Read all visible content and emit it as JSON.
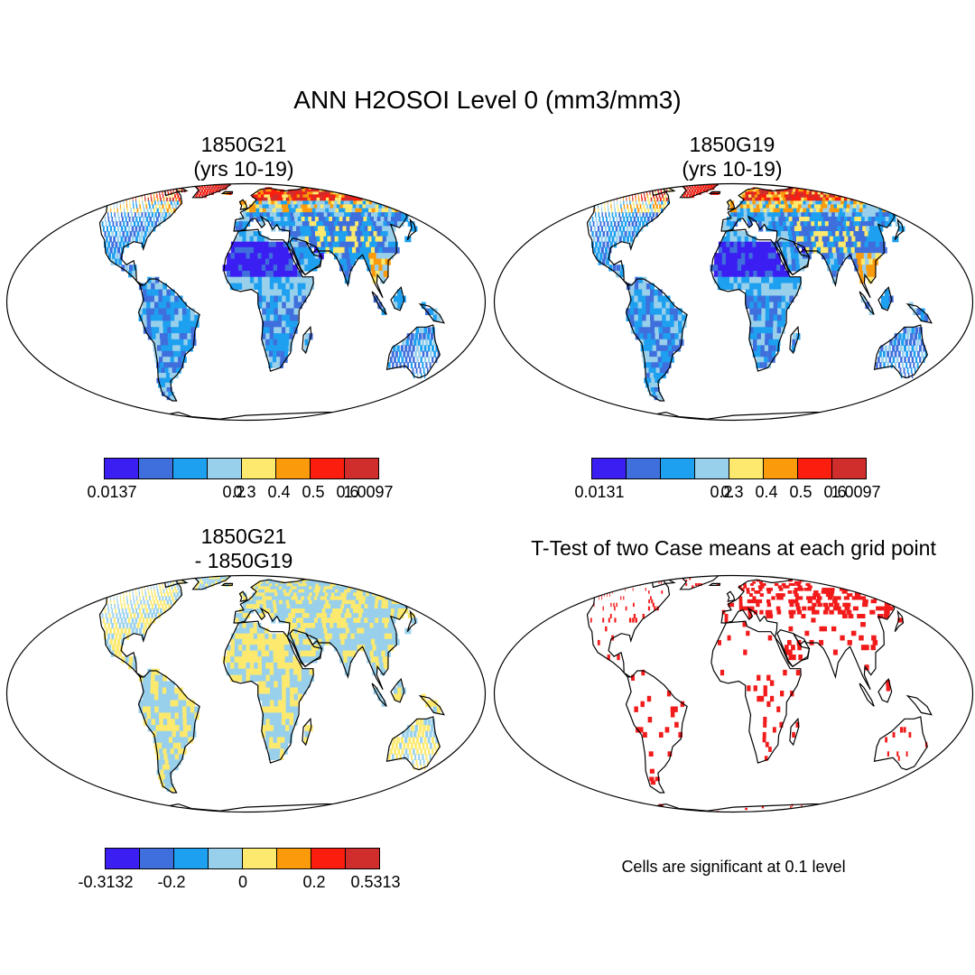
{
  "figure": {
    "title": "ANN H2OSOI Level 0 (mm3/mm3)",
    "note": "Cells are significant at 0.1 level"
  },
  "chart_data": [
    {
      "type": "heatmap",
      "title": "1850G21",
      "subtitle": "(yrs 10-19)",
      "projection": "Robinson",
      "colorbar": {
        "tick_labels": [
          "0.0137",
          "0.2",
          "0.3",
          "0.4",
          "0.5",
          "0.6",
          "1.0097"
        ],
        "min": 0.0137,
        "max": 1.0097,
        "levels": [
          0.2,
          0.3,
          0.4,
          0.5,
          0.6
        ],
        "colors": [
          "#3a1ef2",
          "#3e6fdc",
          "#1ea0f0",
          "#98d0ec",
          "#fce96e",
          "#fb9a0a",
          "#fb1d0e",
          "#d02d2d"
        ]
      }
    },
    {
      "type": "heatmap",
      "title": "1850G19",
      "subtitle": "(yrs 10-19)",
      "projection": "Robinson",
      "colorbar": {
        "tick_labels": [
          "0.0131",
          "0.2",
          "0.3",
          "0.4",
          "0.5",
          "0.6",
          "1.0097"
        ],
        "min": 0.0131,
        "max": 1.0097,
        "levels": [
          0.2,
          0.3,
          0.4,
          0.5,
          0.6
        ],
        "colors": [
          "#3a1ef2",
          "#3e6fdc",
          "#1ea0f0",
          "#98d0ec",
          "#fce96e",
          "#fb9a0a",
          "#fb1d0e",
          "#d02d2d"
        ]
      }
    },
    {
      "type": "heatmap",
      "title": "1850G21",
      "subtitle": "- 1850G19",
      "projection": "Robinson",
      "colorbar": {
        "tick_labels": [
          "-0.3132",
          "-0.2",
          "0",
          "0.2",
          "0.5313"
        ],
        "min": -0.3132,
        "max": 0.5313,
        "colors": [
          "#3a1ef2",
          "#3e6fdc",
          "#1ea0f0",
          "#98d0ec",
          "#fce96e",
          "#fb9a0a",
          "#fb1d0e",
          "#d02d2d"
        ]
      }
    },
    {
      "type": "heatmap",
      "title": "T-Test of two Case means at each grid point",
      "projection": "Robinson",
      "significance_color": "#f21b1b"
    }
  ]
}
